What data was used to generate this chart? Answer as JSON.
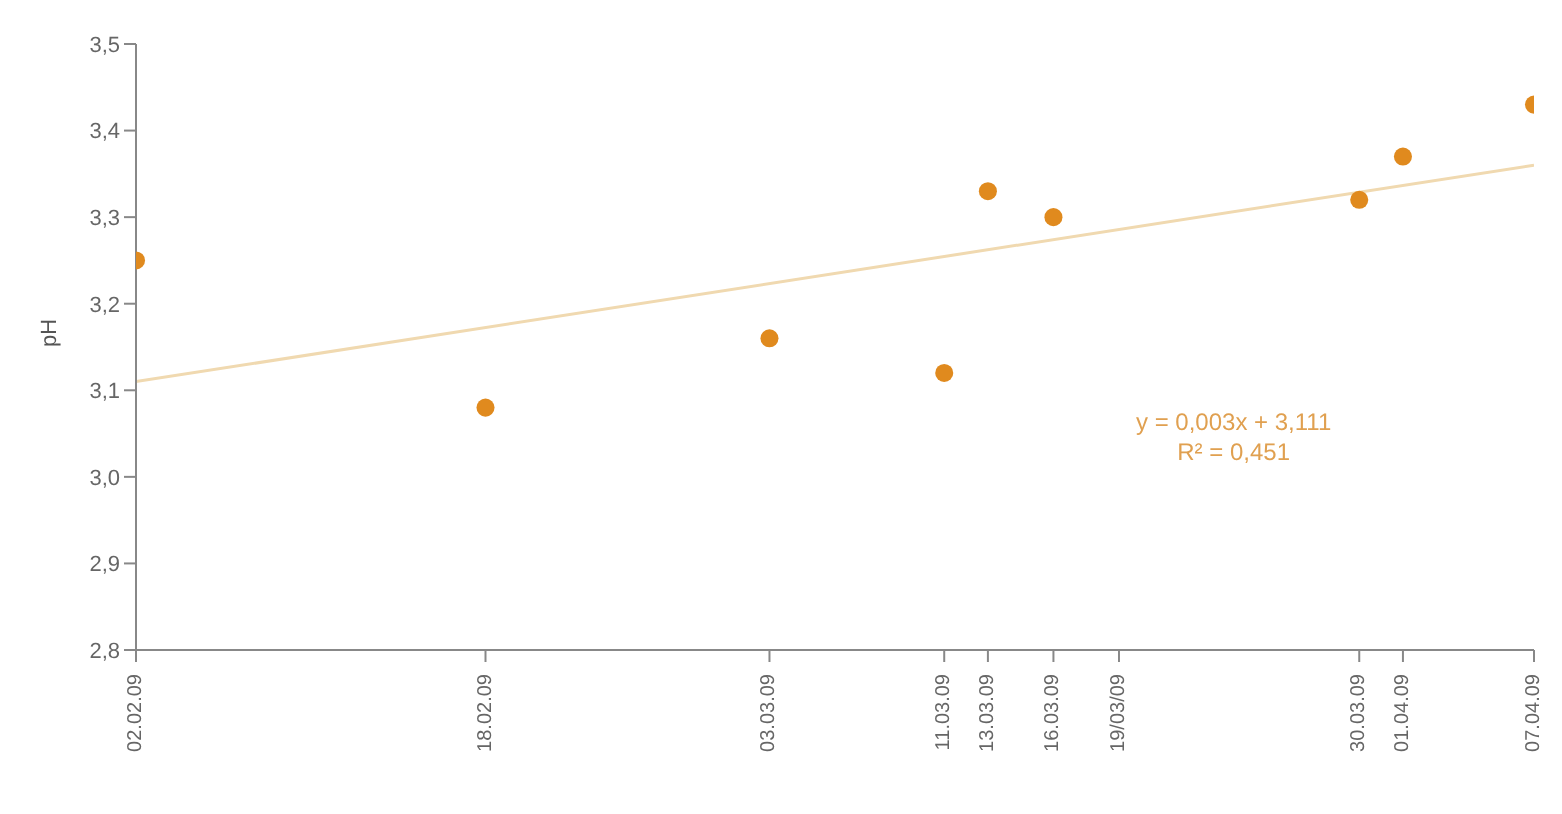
{
  "chart_data": {
    "type": "scatter",
    "ylabel": "pH",
    "x": [
      "--02-02",
      "--02-18",
      "--03-03",
      "--03-11",
      "--03-13",
      "--03-16",
      "--03-30",
      "--04-01",
      "--04-07"
    ],
    "series": [
      {
        "type": "scatter",
        "marker": "circle",
        "color": "#e08a1e",
        "values": [
          3.25,
          3.08,
          3.16,
          3.12,
          3.33,
          3.3,
          3.32,
          3.37,
          3.43
        ]
      },
      {
        "type": "line",
        "color": "#f0d9b0",
        "x": [
          "--02-02",
          "--04-07"
        ],
        "values": [
          3.11,
          3.36
        ]
      }
    ],
    "xlim": [
      "--02-02",
      "--04-07"
    ],
    "xticks": [
      {
        "value": "--02-02",
        "label": "02.02.09"
      },
      {
        "value": "--02-18",
        "label": "18.02.09"
      },
      {
        "value": "--03-03",
        "label": "03.03.09"
      },
      {
        "value": "--03-11",
        "label": "11.03.09"
      },
      {
        "value": "--03-13",
        "label": "13.03.09"
      },
      {
        "value": "--03-16",
        "label": "16.03.09"
      },
      {
        "value": "--03-19",
        "label": "19/03/09"
      },
      {
        "value": "--03-30",
        "label": "30.03.09"
      },
      {
        "value": "--04-01",
        "label": "01.04.09"
      },
      {
        "value": "--04-07",
        "label": "07.04.09"
      }
    ],
    "ylim": [
      2.8,
      3.5
    ],
    "yticks": [
      {
        "value": 2.8,
        "label": "2,8"
      },
      {
        "value": 2.9,
        "label": "2,9"
      },
      {
        "value": 3.0,
        "label": "3,0"
      },
      {
        "value": 3.1,
        "label": "3,1"
      },
      {
        "value": 3.2,
        "label": "3,2"
      },
      {
        "value": 3.3,
        "label": "3,3"
      },
      {
        "value": 3.4,
        "label": "3,4"
      },
      {
        "value": 3.5,
        "label": "3,5"
      }
    ],
    "annotations": [
      "y = 0,003x + 3,111",
      "R² = 0,451"
    ],
    "line_style": "solid",
    "grid": false
  }
}
